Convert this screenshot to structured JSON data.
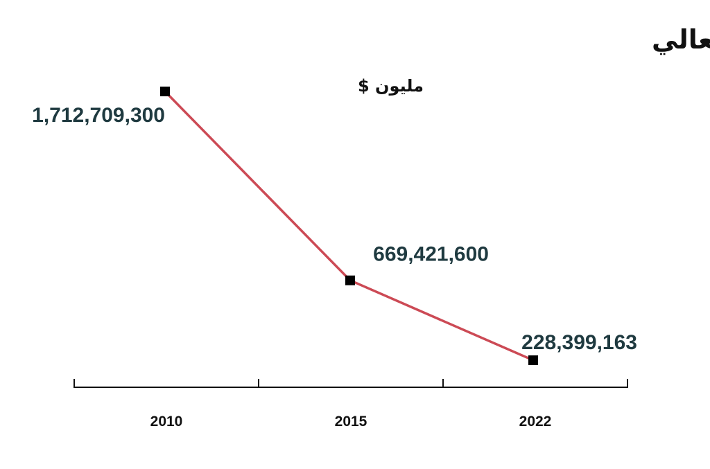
{
  "chart_data": {
    "type": "line",
    "title": "الإنفاق «التقديري» الحكومي على قطاع التربية والتعليم العالي",
    "subtitle": "مليون $",
    "x": [
      "2010",
      "2015",
      "2022"
    ],
    "series": [
      {
        "values": [
          1712709300,
          669421600,
          228399163
        ],
        "labels": [
          "1,712,709,300",
          "669,421,600",
          "228,399,163"
        ],
        "color": "#cc4a55",
        "marker": "square",
        "marker_color": "#000000"
      }
    ],
    "label_color": "#1f3a40",
    "grid": false,
    "legend": "none"
  }
}
